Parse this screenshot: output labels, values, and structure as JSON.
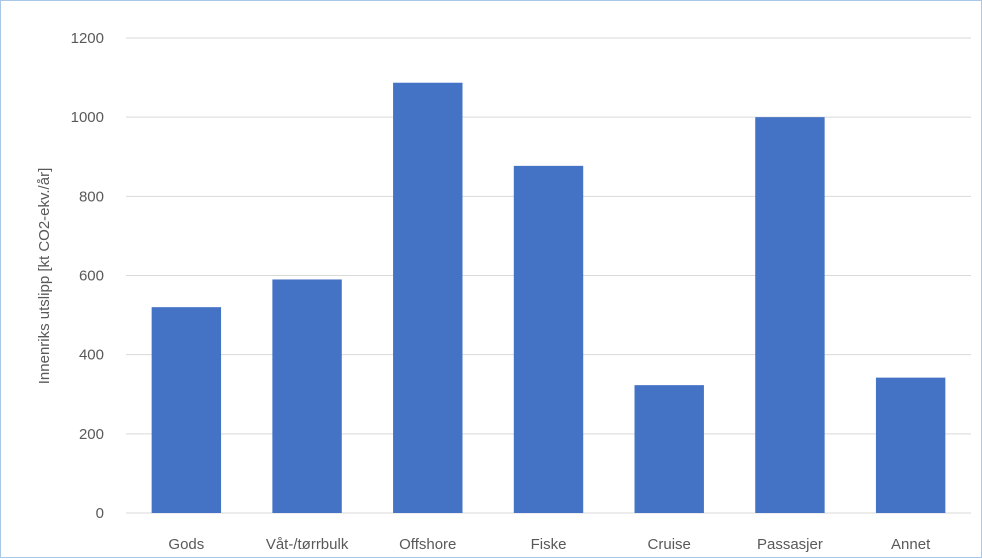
{
  "chart_data": {
    "type": "bar",
    "categories": [
      "Gods",
      "Våt-/tørrbulk",
      "Offshore",
      "Fiske",
      "Cruise",
      "Passasjer",
      "Annet"
    ],
    "values": [
      520,
      590,
      1087,
      877,
      323,
      1000,
      342
    ],
    "title": "",
    "xlabel": "",
    "ylabel": "Innenriks utslipp [kt CO2-ekv./år]",
    "ylim": [
      0,
      1200
    ],
    "yticks": [
      0,
      200,
      400,
      600,
      800,
      1000,
      1200
    ],
    "grid": true,
    "legend": "none",
    "colors": {
      "bar": "#4472c4",
      "grid": "#d9d9d9",
      "text": "#595959",
      "border": "#a9c8e6"
    }
  }
}
